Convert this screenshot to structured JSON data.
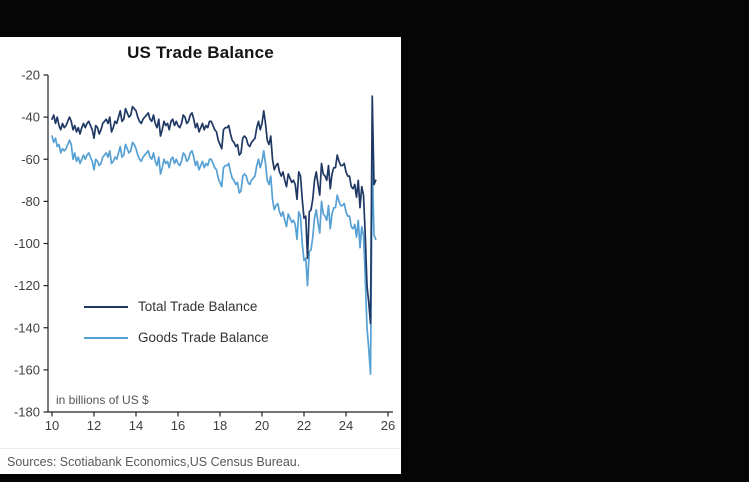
{
  "window": {
    "background": "#050505",
    "panel_background": "#ffffff"
  },
  "chart_data": {
    "type": "line",
    "title": "US Trade Balance",
    "note": "in billions of US $",
    "xlabel": "",
    "ylabel": "",
    "xlim": [
      2010,
      2026
    ],
    "ylim": [
      -180,
      -20
    ],
    "grid": false,
    "legend_position": "inside-left",
    "x_ticks": [
      10,
      12,
      14,
      16,
      18,
      20,
      22,
      24,
      26
    ],
    "y_ticks": [
      -20,
      -40,
      -60,
      -80,
      -100,
      -120,
      -140,
      -160,
      -180
    ],
    "x_start_year": 2010,
    "x_frequency": "monthly",
    "series": [
      {
        "name": "Total Trade Balance",
        "color": "#1f3864",
        "values": [
          -41,
          -39,
          -43,
          -40,
          -44,
          -46,
          -43,
          -45,
          -44,
          -42,
          -40,
          -42,
          -46,
          -44,
          -47,
          -45,
          -48,
          -45,
          -43,
          -45,
          -43,
          -42,
          -44,
          -46,
          -50,
          -44,
          -45,
          -48,
          -46,
          -43,
          -42,
          -41,
          -43,
          -40,
          -47,
          -45,
          -42,
          -43,
          -40,
          -37,
          -42,
          -41,
          -36,
          -38,
          -40,
          -39,
          -35,
          -36,
          -37,
          -40,
          -42,
          -43,
          -41,
          -40,
          -39,
          -38,
          -41,
          -42,
          -39,
          -43,
          -45,
          -41,
          -49,
          -46,
          -42,
          -44,
          -43,
          -46,
          -42,
          -41,
          -44,
          -42,
          -44,
          -45,
          -43,
          -39,
          -40,
          -43,
          -42,
          -39,
          -38,
          -41,
          -45,
          -43,
          -47,
          -45,
          -43,
          -46,
          -44,
          -45,
          -42,
          -42,
          -44,
          -46,
          -47,
          -51,
          -53,
          -55,
          -46,
          -45,
          -45,
          -44,
          -48,
          -51,
          -52,
          -54,
          -53,
          -58,
          -57,
          -50,
          -49,
          -50,
          -53,
          -54,
          -52,
          -51,
          -50,
          -45,
          -42,
          -46,
          -43,
          -37,
          -43,
          -51,
          -53,
          -49,
          -60,
          -65,
          -63,
          -62,
          -66,
          -68,
          -66,
          -70,
          -73,
          -67,
          -69,
          -71,
          -70,
          -72,
          -79,
          -66,
          -68,
          -79,
          -88,
          -87,
          -107,
          -85,
          -84,
          -79,
          -70,
          -66,
          -72,
          -77,
          -62,
          -67,
          -68,
          -70,
          -63,
          -74,
          -67,
          -64,
          -64,
          -58,
          -61,
          -63,
          -63,
          -62,
          -66,
          -68,
          -68,
          -73,
          -74,
          -72,
          -78,
          -70,
          -83,
          -73,
          -77,
          -96,
          -120,
          -128,
          -138,
          -30,
          -72,
          -70
        ]
      },
      {
        "name": "Goods Trade Balance",
        "color": "#56a0d3",
        "values": [
          -49,
          -52,
          -50,
          -54,
          -53,
          -57,
          -55,
          -56,
          -55,
          -53,
          -51,
          -53,
          -60,
          -57,
          -61,
          -59,
          -62,
          -60,
          -58,
          -60,
          -58,
          -57,
          -59,
          -61,
          -65,
          -60,
          -61,
          -63,
          -62,
          -59,
          -58,
          -57,
          -59,
          -56,
          -62,
          -61,
          -59,
          -60,
          -57,
          -54,
          -59,
          -58,
          -53,
          -55,
          -57,
          -56,
          -52,
          -53,
          -55,
          -58,
          -60,
          -61,
          -59,
          -58,
          -57,
          -56,
          -59,
          -60,
          -57,
          -61,
          -63,
          -59,
          -67,
          -64,
          -60,
          -62,
          -61,
          -64,
          -60,
          -59,
          -62,
          -60,
          -62,
          -63,
          -61,
          -57,
          -58,
          -61,
          -60,
          -57,
          -56,
          -59,
          -63,
          -61,
          -65,
          -63,
          -61,
          -64,
          -62,
          -63,
          -60,
          -60,
          -62,
          -64,
          -65,
          -69,
          -71,
          -73,
          -64,
          -63,
          -63,
          -62,
          -66,
          -69,
          -70,
          -72,
          -71,
          -76,
          -75,
          -68,
          -67,
          -68,
          -71,
          -72,
          -70,
          -69,
          -68,
          -63,
          -60,
          -64,
          -61,
          -56,
          -62,
          -70,
          -72,
          -68,
          -79,
          -84,
          -82,
          -81,
          -85,
          -87,
          -85,
          -89,
          -92,
          -86,
          -88,
          -90,
          -89,
          -91,
          -98,
          -85,
          -87,
          -100,
          -108,
          -107,
          -120,
          -104,
          -103,
          -97,
          -88,
          -84,
          -90,
          -95,
          -80,
          -86,
          -87,
          -89,
          -82,
          -93,
          -86,
          -83,
          -83,
          -77,
          -80,
          -82,
          -82,
          -81,
          -85,
          -87,
          -87,
          -92,
          -93,
          -91,
          -97,
          -89,
          -102,
          -92,
          -96,
          -116,
          -140,
          -150,
          -162,
          -62,
          -96,
          -98
        ]
      }
    ],
    "axis_color": "#222222",
    "tick_label_color": "#404040"
  },
  "source": {
    "text": "Sources: Scotiabank Economics,US Census Bureau."
  }
}
